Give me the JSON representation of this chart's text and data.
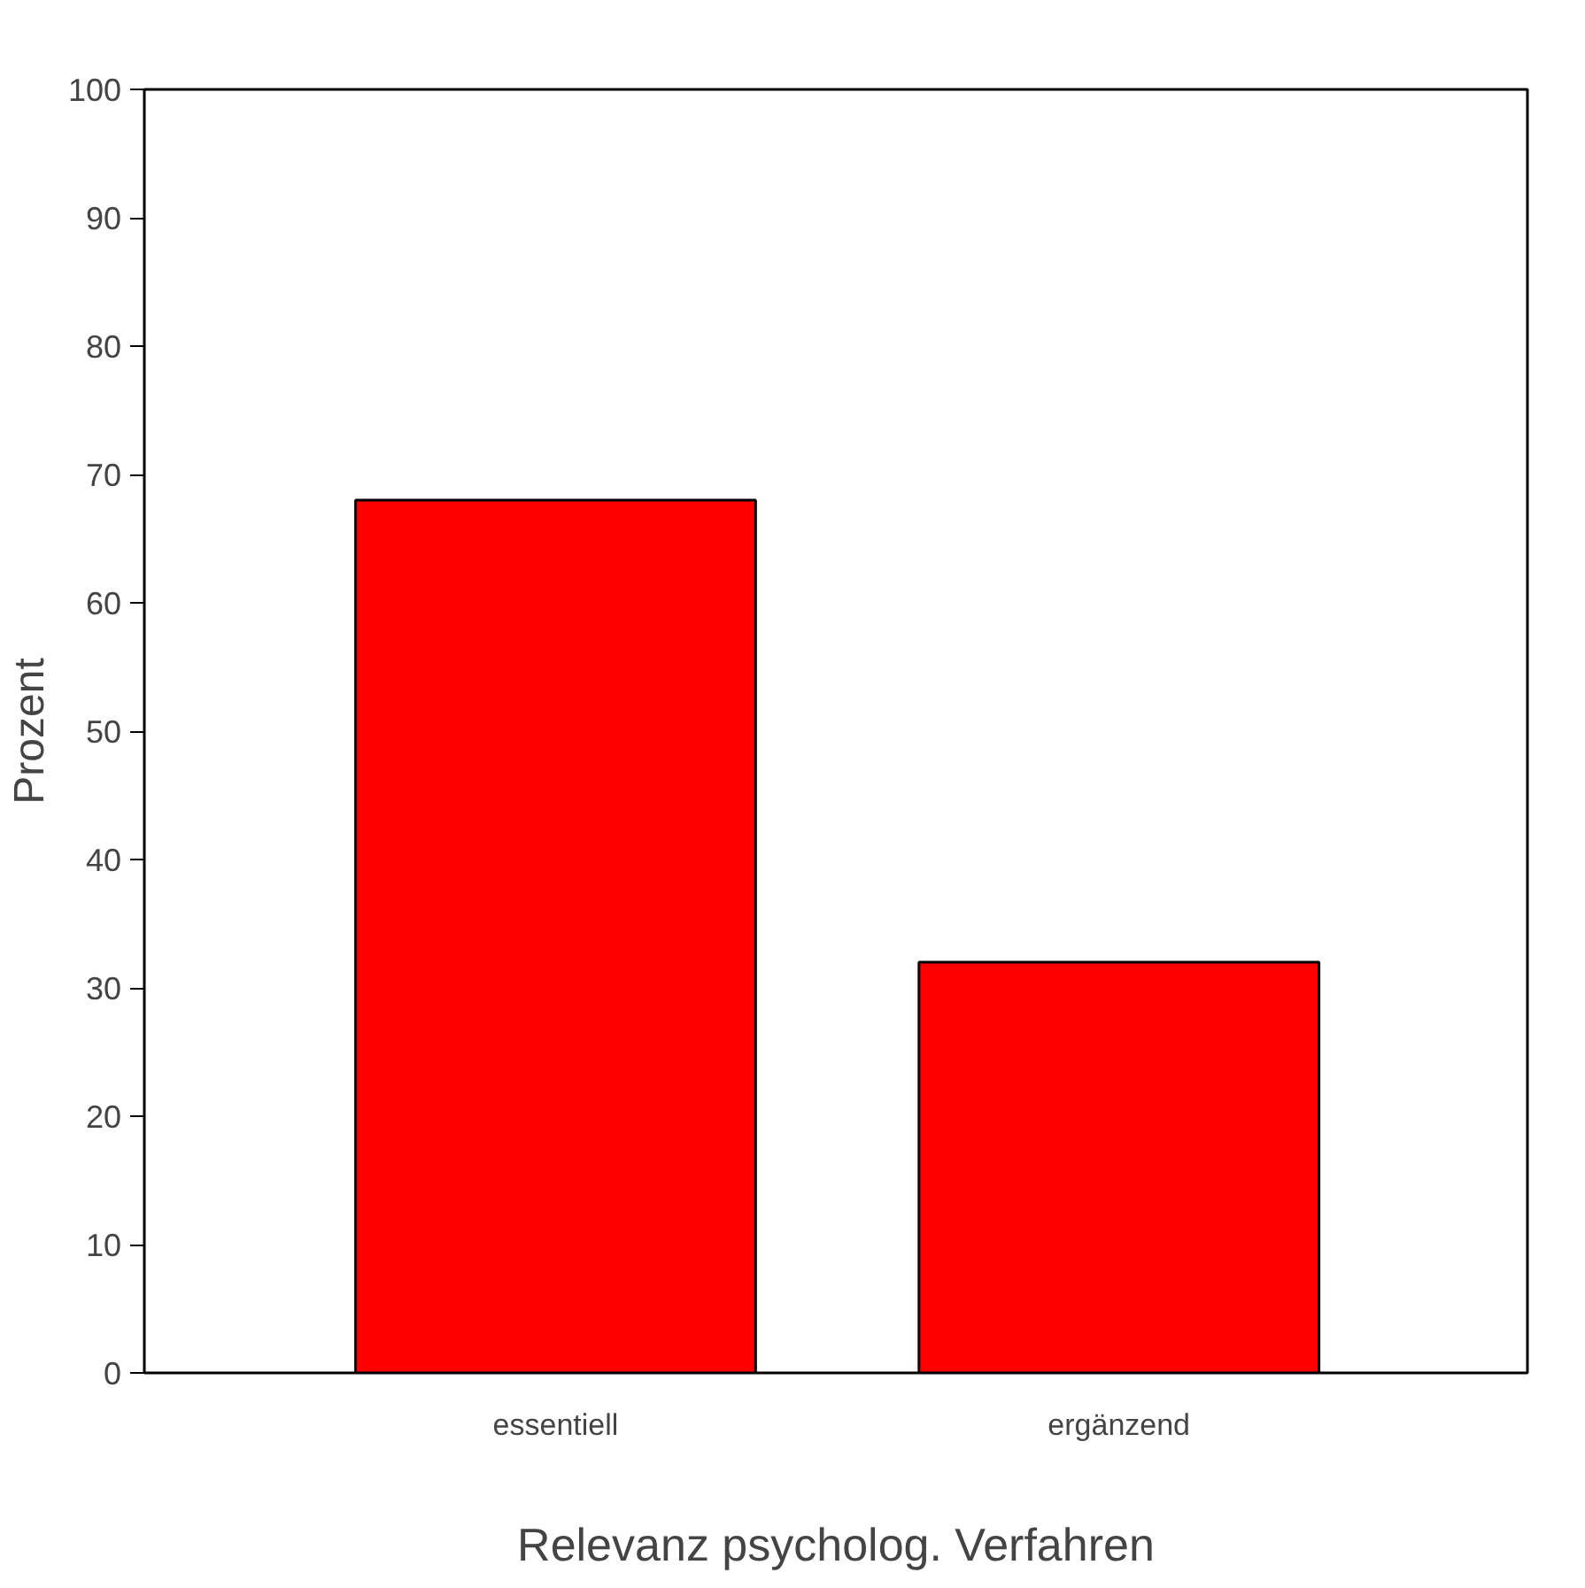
{
  "chart_data": {
    "type": "bar",
    "xlabel": "Relevanz psycholog. Verfahren",
    "ylabel": "Prozent",
    "categories": [
      "essentiell",
      "ergänzend"
    ],
    "values": [
      68,
      32
    ],
    "color": "#ff0000",
    "ylim": [
      0,
      100
    ],
    "yticks": [
      0,
      10,
      20,
      30,
      40,
      50,
      60,
      70,
      80,
      90,
      100
    ],
    "grid": false
  }
}
